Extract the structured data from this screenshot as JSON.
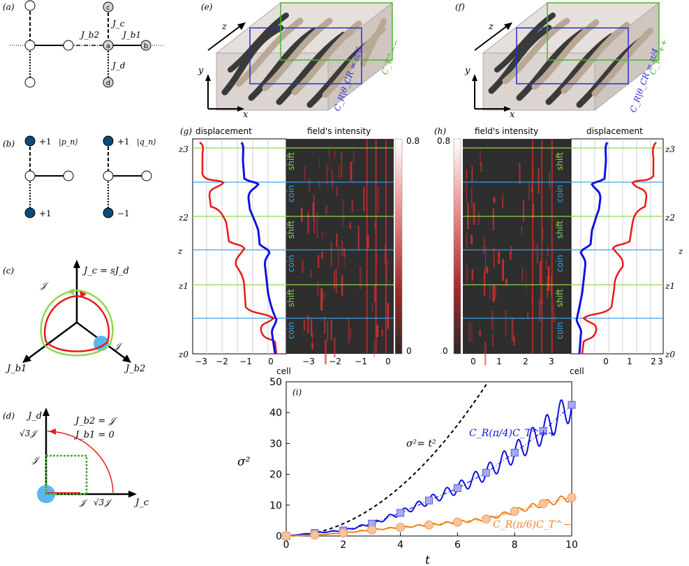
{
  "panels": {
    "a": "(a)",
    "b": "(b)",
    "c": "(c)",
    "d": "(d)",
    "e": "(e)",
    "f": "(f)",
    "g": "(g)",
    "h": "(h)",
    "i": "(i)"
  },
  "panel_a": {
    "site_a": "a",
    "site_b": "b",
    "site_c": "c",
    "site_d": "d",
    "jb2": "J_b2",
    "jb1": "J_b1",
    "jc": "J_c",
    "jd": "J_d"
  },
  "panel_b": {
    "left_top": "+1",
    "left_ket": "|p_n⟩",
    "left_bottom": "+1",
    "right_top": "+1",
    "right_ket": "|q_n⟩",
    "right_bottom": "−1"
  },
  "panel_c": {
    "axis_top": "J_c = sJ_d",
    "axis_left": "J_b1",
    "axis_right": "J_b2",
    "script_j": "𝒥"
  },
  "panel_d": {
    "eq1": "J_b2 = 𝒥",
    "eq2": "J_b1 = 0",
    "y_axis": "J_d",
    "x_axis": "J_c",
    "sqrt3j": "√3𝒥",
    "j": "𝒥"
  },
  "panel_e": {
    "z": "z",
    "y": "y",
    "x": "x",
    "cr": "C_R|θ_CR = π/6",
    "ct": "C_T^−−"
  },
  "panel_f": {
    "z": "z",
    "y": "y",
    "x": "x",
    "cr": "C_R|θ_CR = π/4",
    "ct": "C_T^++"
  },
  "panel_g": {
    "title_left": "displacement",
    "title_right": "field's intensity",
    "xlabel": "cell",
    "zlabel": "z",
    "z_ticks": [
      "z3",
      "z2",
      "z1",
      "z0"
    ],
    "x_ticks_disp": [
      "−3",
      "−2",
      "−1",
      "0"
    ],
    "x_ticks_field": [
      "−3",
      "−2",
      "−1",
      "0"
    ],
    "step_labels": [
      "shift",
      "coin",
      "shift",
      "coin",
      "shift",
      "coin"
    ],
    "cbar_max": "0.8",
    "cbar_min": "0"
  },
  "panel_h": {
    "title_left": "field's intensity",
    "title_right": "displacement",
    "xlabel": "cell",
    "zlabel": "z",
    "z_ticks": [
      "z3",
      "z2",
      "z1",
      "z0"
    ],
    "x_ticks_disp": [
      "0",
      "1",
      "2",
      "3"
    ],
    "x_ticks_field": [
      "0",
      "1",
      "2",
      "3"
    ],
    "step_labels": [
      "shift",
      "coin",
      "shift",
      "coin",
      "shift",
      "coin"
    ],
    "cbar_max": "0.8",
    "cbar_min": "0"
  },
  "colors": {
    "red": "#e8191c",
    "blue": "#1010e0",
    "green": "#8fd64a",
    "cyan": "#3aa0e8",
    "orange": "#f0821e",
    "navy": "#0c4a78",
    "ballblue": "#5ab7ee",
    "square_fill": "#a9a9f0",
    "circle_fill": "#f9c49a"
  },
  "chart_data": {
    "type": "line",
    "title": "",
    "xlabel": "t",
    "ylabel": "σ²",
    "xlim": [
      0,
      10
    ],
    "ylim": [
      0,
      50
    ],
    "x_ticks": [
      0,
      2,
      4,
      6,
      8,
      10
    ],
    "y_ticks": [
      0,
      10,
      20,
      30,
      40,
      50
    ],
    "series": [
      {
        "name": "σ²= t²",
        "style": "dashed",
        "color": "#000000",
        "x": [
          0,
          1,
          2,
          3,
          4,
          5,
          6,
          7
        ],
        "values": [
          0,
          1,
          4,
          9,
          16,
          25,
          36,
          49
        ]
      },
      {
        "name": "C_R(π/4)C_T^++",
        "color": "#1010e0",
        "marker": "square",
        "x": [
          0,
          1,
          2,
          3,
          4,
          5,
          6,
          7,
          8,
          9,
          10
        ],
        "values": [
          0,
          1.0,
          1.8,
          4.0,
          7.5,
          11.5,
          15.5,
          20.5,
          27.0,
          34.0,
          42.5
        ]
      },
      {
        "name": "C_R(π/6)C_T^−",
        "color": "#f0821e",
        "marker": "circle",
        "x": [
          0,
          1,
          2,
          3,
          4,
          5,
          6,
          7,
          8,
          9,
          10
        ],
        "values": [
          0,
          0.3,
          1.0,
          2.0,
          2.8,
          3.6,
          4.5,
          5.5,
          8.0,
          10.5,
          12.5
        ]
      }
    ]
  }
}
